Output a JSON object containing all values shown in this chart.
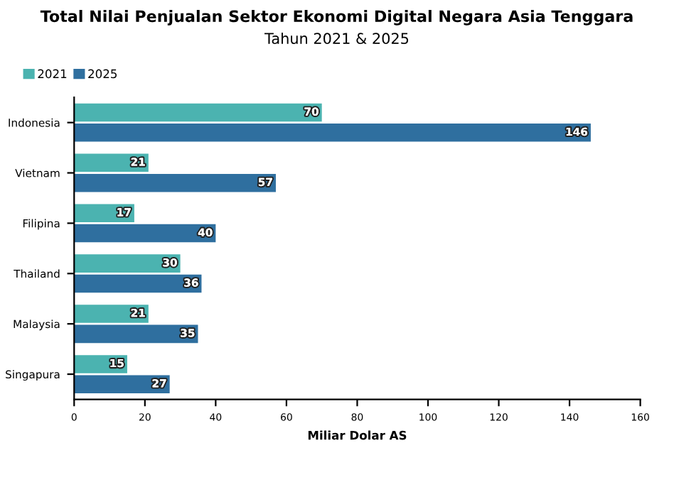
{
  "chart_data": {
    "type": "bar",
    "orientation": "horizontal",
    "title": "Total Nilai Penjualan Sektor Ekonomi Digital Negara Asia Tenggara",
    "subtitle": "Tahun 2021 & 2025",
    "xlabel": "Miliar Dolar AS",
    "categories": [
      "Indonesia",
      "Vietnam",
      "Filipina",
      "Thailand",
      "Malaysia",
      "Singapura"
    ],
    "series": [
      {
        "name": "2021",
        "color": "#4bb3b0",
        "values": [
          70,
          21,
          17,
          30,
          21,
          15
        ]
      },
      {
        "name": "2025",
        "color": "#2f6f9f",
        "values": [
          146,
          57,
          40,
          36,
          35,
          27
        ]
      }
    ],
    "xlim": [
      0,
      160
    ],
    "xticks": [
      0,
      20,
      40,
      60,
      80,
      100,
      120,
      140,
      160
    ],
    "data_labels": true,
    "legend": "top left",
    "grid": false
  }
}
